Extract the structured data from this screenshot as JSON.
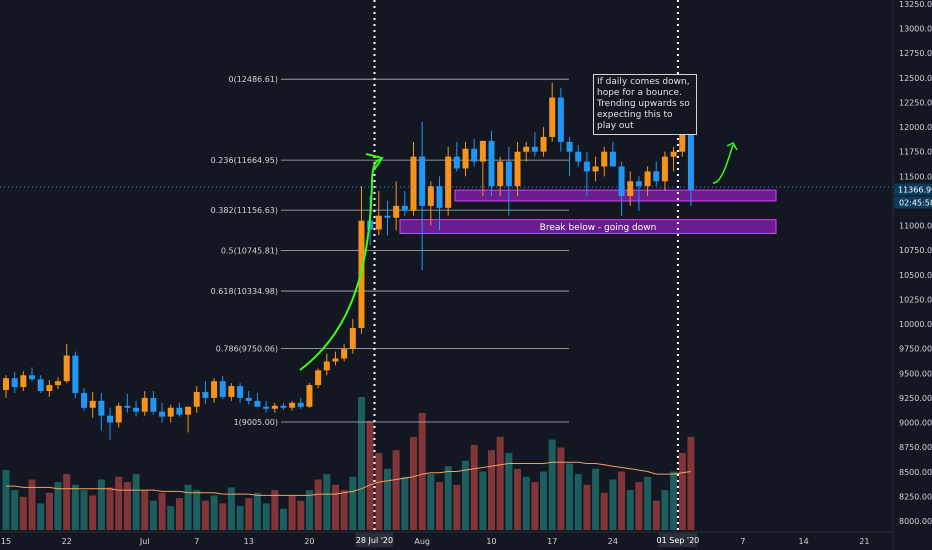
{
  "chart_data": {
    "type": "candlestick",
    "price_axis": {
      "ticks": [
        "13250.00",
        "13000.00",
        "12750.00",
        "12500.00",
        "12250.00",
        "12000.00",
        "11750.00",
        "11500.00",
        "11250.00",
        "11000.00",
        "10750.00",
        "10500.00",
        "10250.00",
        "10000.00",
        "9750.00",
        "9500.00",
        "9250.00",
        "9000.00",
        "8750.00",
        "8500.00",
        "8250.00",
        "8000.00"
      ],
      "current_price": "11366.90",
      "countdown": "02:45:58",
      "range": [
        7900,
        13320
      ]
    },
    "time_axis": {
      "labels": [
        {
          "t": 0,
          "text": "15"
        },
        {
          "t": 7,
          "text": "22"
        },
        {
          "t": 16,
          "text": "Jul"
        },
        {
          "t": 22,
          "text": "7"
        },
        {
          "t": 28,
          "text": "13"
        },
        {
          "t": 35,
          "text": "20"
        },
        {
          "t": 48,
          "text": "Aug"
        },
        {
          "t": 56,
          "text": "10"
        },
        {
          "t": 63,
          "text": "17"
        },
        {
          "t": 70,
          "text": "24"
        },
        {
          "t": 85,
          "text": "7"
        },
        {
          "t": 92,
          "text": "14"
        },
        {
          "t": 99,
          "text": "21"
        }
      ],
      "highlighted": [
        {
          "t": 42.5,
          "text": "28 Jul '20"
        },
        {
          "t": 77.5,
          "text": "01 Sep '20"
        }
      ]
    },
    "fib_levels": [
      {
        "label": "0(12486.61)",
        "price": 12486.61
      },
      {
        "label": "0.236(11664.95)",
        "price": 11664.95
      },
      {
        "label": "0.382(11156.63)",
        "price": 11156.63
      },
      {
        "label": "0.5(10745.81)",
        "price": 10745.81
      },
      {
        "label": "0.618(10334.98)",
        "price": 10334.98
      },
      {
        "label": "0.786(9750.06)",
        "price": 9750.06
      },
      {
        "label": "1(9005.00)",
        "price": 9005.0
      }
    ],
    "zones": [
      {
        "label": "",
        "top": 11360,
        "bottom": 11250
      },
      {
        "label": "Break below - going down",
        "top": 11060,
        "bottom": 10920
      }
    ],
    "annotation": "If daily comes down, hope for a bounce. Trending upwards so expecting this to play out",
    "candles": [
      [
        9330,
        9480,
        9250,
        9450
      ],
      [
        9450,
        9510,
        9300,
        9360
      ],
      [
        9360,
        9520,
        9320,
        9480
      ],
      [
        9480,
        9560,
        9420,
        9440
      ],
      [
        9440,
        9480,
        9300,
        9320
      ],
      [
        9320,
        9430,
        9260,
        9380
      ],
      [
        9380,
        9460,
        9340,
        9420
      ],
      [
        9420,
        9800,
        9400,
        9680
      ],
      [
        9680,
        9720,
        9250,
        9300
      ],
      [
        9300,
        9350,
        9120,
        9150
      ],
      [
        9150,
        9310,
        9050,
        9220
      ],
      [
        9220,
        9300,
        8920,
        9070
      ],
      [
        9070,
        9150,
        8820,
        9000
      ],
      [
        9000,
        9200,
        8950,
        9170
      ],
      [
        9170,
        9290,
        9100,
        9150
      ],
      [
        9150,
        9220,
        9060,
        9110
      ],
      [
        9110,
        9320,
        9070,
        9250
      ],
      [
        9250,
        9320,
        9080,
        9110
      ],
      [
        9110,
        9200,
        9000,
        9060
      ],
      [
        9060,
        9180,
        9000,
        9150
      ],
      [
        9150,
        9200,
        9060,
        9080
      ],
      [
        9080,
        9160,
        8900,
        9160
      ],
      [
        9160,
        9370,
        9100,
        9310
      ],
      [
        9310,
        9420,
        9190,
        9250
      ],
      [
        9250,
        9450,
        9200,
        9420
      ],
      [
        9420,
        9470,
        9240,
        9260
      ],
      [
        9260,
        9400,
        9220,
        9370
      ],
      [
        9370,
        9400,
        9200,
        9250
      ],
      [
        9250,
        9320,
        9180,
        9220
      ],
      [
        9220,
        9300,
        9160,
        9160
      ],
      [
        9160,
        9220,
        9100,
        9140
      ],
      [
        9140,
        9200,
        9100,
        9170
      ],
      [
        9170,
        9200,
        9130,
        9150
      ],
      [
        9150,
        9220,
        9120,
        9200
      ],
      [
        9200,
        9250,
        9140,
        9160
      ],
      [
        9160,
        9400,
        9150,
        9380
      ],
      [
        9380,
        9550,
        9350,
        9530
      ],
      [
        9530,
        9700,
        9480,
        9620
      ],
      [
        9620,
        9720,
        9580,
        9650
      ],
      [
        9650,
        9800,
        9620,
        9750
      ],
      [
        9750,
        10050,
        9700,
        9960
      ],
      [
        9960,
        11400,
        9900,
        11050
      ],
      [
        11050,
        11300,
        10800,
        10960
      ],
      [
        10960,
        11350,
        10900,
        11100
      ],
      [
        11100,
        11250,
        10900,
        11080
      ],
      [
        11080,
        11450,
        10950,
        11200
      ],
      [
        11200,
        11350,
        11100,
        11150
      ],
      [
        11150,
        11850,
        11100,
        11700
      ],
      [
        11700,
        12050,
        10550,
        11200
      ],
      [
        11200,
        11450,
        11000,
        11400
      ],
      [
        11400,
        11500,
        10950,
        11180
      ],
      [
        11180,
        11800,
        11100,
        11700
      ],
      [
        11700,
        11850,
        11550,
        11580
      ],
      [
        11580,
        11850,
        11500,
        11780
      ],
      [
        11780,
        11880,
        11600,
        11650
      ],
      [
        11650,
        11850,
        11300,
        11860
      ],
      [
        11860,
        11960,
        11300,
        11400
      ],
      [
        11400,
        11700,
        11300,
        11650
      ],
      [
        11650,
        11800,
        11100,
        11400
      ],
      [
        11400,
        11850,
        11300,
        11750
      ],
      [
        11750,
        11850,
        11650,
        11800
      ],
      [
        11800,
        11950,
        11700,
        11750
      ],
      [
        11750,
        12000,
        11700,
        11900
      ],
      [
        11900,
        12450,
        11850,
        12300
      ],
      [
        12300,
        12400,
        11750,
        11850
      ],
      [
        11850,
        11900,
        11500,
        11750
      ],
      [
        11750,
        11820,
        11600,
        11650
      ],
      [
        11650,
        11750,
        11300,
        11550
      ],
      [
        11550,
        11700,
        11450,
        11600
      ],
      [
        11600,
        11800,
        11500,
        11750
      ],
      [
        11750,
        11850,
        11600,
        11600
      ],
      [
        11600,
        11650,
        11100,
        11300
      ],
      [
        11300,
        11550,
        11200,
        11450
      ],
      [
        11450,
        11500,
        11150,
        11400
      ],
      [
        11400,
        11600,
        11300,
        11550
      ],
      [
        11550,
        11650,
        11400,
        11450
      ],
      [
        11450,
        11750,
        11350,
        11700
      ],
      [
        11700,
        11800,
        11550,
        11750
      ],
      [
        11750,
        12100,
        11700,
        11950
      ],
      [
        11950,
        12100,
        11200,
        11366
      ]
    ],
    "volumes": [
      [
        0.45,
        1
      ],
      [
        0.3,
        1
      ],
      [
        0.25,
        0
      ],
      [
        0.38,
        0
      ],
      [
        0.2,
        1
      ],
      [
        0.28,
        0
      ],
      [
        0.36,
        1
      ],
      [
        0.42,
        0
      ],
      [
        0.34,
        1
      ],
      [
        0.3,
        1
      ],
      [
        0.26,
        0
      ],
      [
        0.38,
        1
      ],
      [
        0.32,
        0
      ],
      [
        0.4,
        0
      ],
      [
        0.36,
        0
      ],
      [
        0.42,
        1
      ],
      [
        0.3,
        0
      ],
      [
        0.22,
        1
      ],
      [
        0.28,
        0
      ],
      [
        0.18,
        1
      ],
      [
        0.24,
        0
      ],
      [
        0.34,
        1
      ],
      [
        0.3,
        1
      ],
      [
        0.22,
        0
      ],
      [
        0.26,
        1
      ],
      [
        0.2,
        0
      ],
      [
        0.32,
        1
      ],
      [
        0.18,
        1
      ],
      [
        0.24,
        0
      ],
      [
        0.28,
        1
      ],
      [
        0.2,
        1
      ],
      [
        0.3,
        0
      ],
      [
        0.16,
        1
      ],
      [
        0.26,
        0
      ],
      [
        0.22,
        0
      ],
      [
        0.3,
        1
      ],
      [
        0.38,
        0
      ],
      [
        0.42,
        1
      ],
      [
        0.34,
        0
      ],
      [
        0.3,
        0
      ],
      [
        0.4,
        1
      ],
      [
        1.0,
        1
      ],
      [
        0.82,
        0
      ],
      [
        0.58,
        0
      ],
      [
        0.46,
        1
      ],
      [
        0.6,
        0
      ],
      [
        0.4,
        1
      ],
      [
        0.7,
        0
      ],
      [
        0.88,
        0
      ],
      [
        0.42,
        1
      ],
      [
        0.36,
        0
      ],
      [
        0.48,
        1
      ],
      [
        0.34,
        0
      ],
      [
        0.52,
        1
      ],
      [
        0.64,
        0
      ],
      [
        0.44,
        1
      ],
      [
        0.6,
        0
      ],
      [
        0.7,
        0
      ],
      [
        0.58,
        1
      ],
      [
        0.46,
        0
      ],
      [
        0.4,
        1
      ],
      [
        0.36,
        0
      ],
      [
        0.44,
        1
      ],
      [
        0.68,
        1
      ],
      [
        0.62,
        0
      ],
      [
        0.5,
        1
      ],
      [
        0.42,
        1
      ],
      [
        0.34,
        0
      ],
      [
        0.46,
        1
      ],
      [
        0.28,
        0
      ],
      [
        0.38,
        1
      ],
      [
        0.44,
        0
      ],
      [
        0.3,
        1
      ],
      [
        0.36,
        0
      ],
      [
        0.4,
        1
      ],
      [
        0.22,
        0
      ],
      [
        0.3,
        1
      ],
      [
        0.44,
        1
      ],
      [
        0.58,
        0
      ],
      [
        0.7,
        0
      ]
    ],
    "volume_ma": [
      0.33,
      0.33,
      0.32,
      0.32,
      0.32,
      0.32,
      0.31,
      0.31,
      0.31,
      0.31,
      0.31,
      0.31,
      0.31,
      0.3,
      0.3,
      0.3,
      0.3,
      0.3,
      0.29,
      0.29,
      0.29,
      0.28,
      0.28,
      0.28,
      0.28,
      0.27,
      0.27,
      0.27,
      0.27,
      0.26,
      0.26,
      0.26,
      0.26,
      0.26,
      0.26,
      0.26,
      0.27,
      0.27,
      0.27,
      0.28,
      0.29,
      0.31,
      0.34,
      0.36,
      0.37,
      0.38,
      0.39,
      0.4,
      0.42,
      0.43,
      0.43,
      0.44,
      0.44,
      0.45,
      0.46,
      0.47,
      0.48,
      0.49,
      0.5,
      0.5,
      0.5,
      0.5,
      0.5,
      0.51,
      0.51,
      0.51,
      0.51,
      0.5,
      0.5,
      0.49,
      0.48,
      0.47,
      0.46,
      0.45,
      0.44,
      0.42,
      0.42,
      0.42,
      0.43,
      0.44
    ],
    "colors": {
      "background": "#131722",
      "bull": "#f7931a",
      "bear": "#2196f3",
      "vol_up": "#26a69a",
      "vol_down": "#ef5350",
      "zone_fill": "#7b1fa2",
      "zone_border": "#e040fb",
      "arrow": "#39ff14",
      "fib_line": "#b2b5be",
      "axis_text": "#d1d4dc",
      "price_label": "#0b3b5b",
      "vol_ma": "#f0a060"
    }
  }
}
